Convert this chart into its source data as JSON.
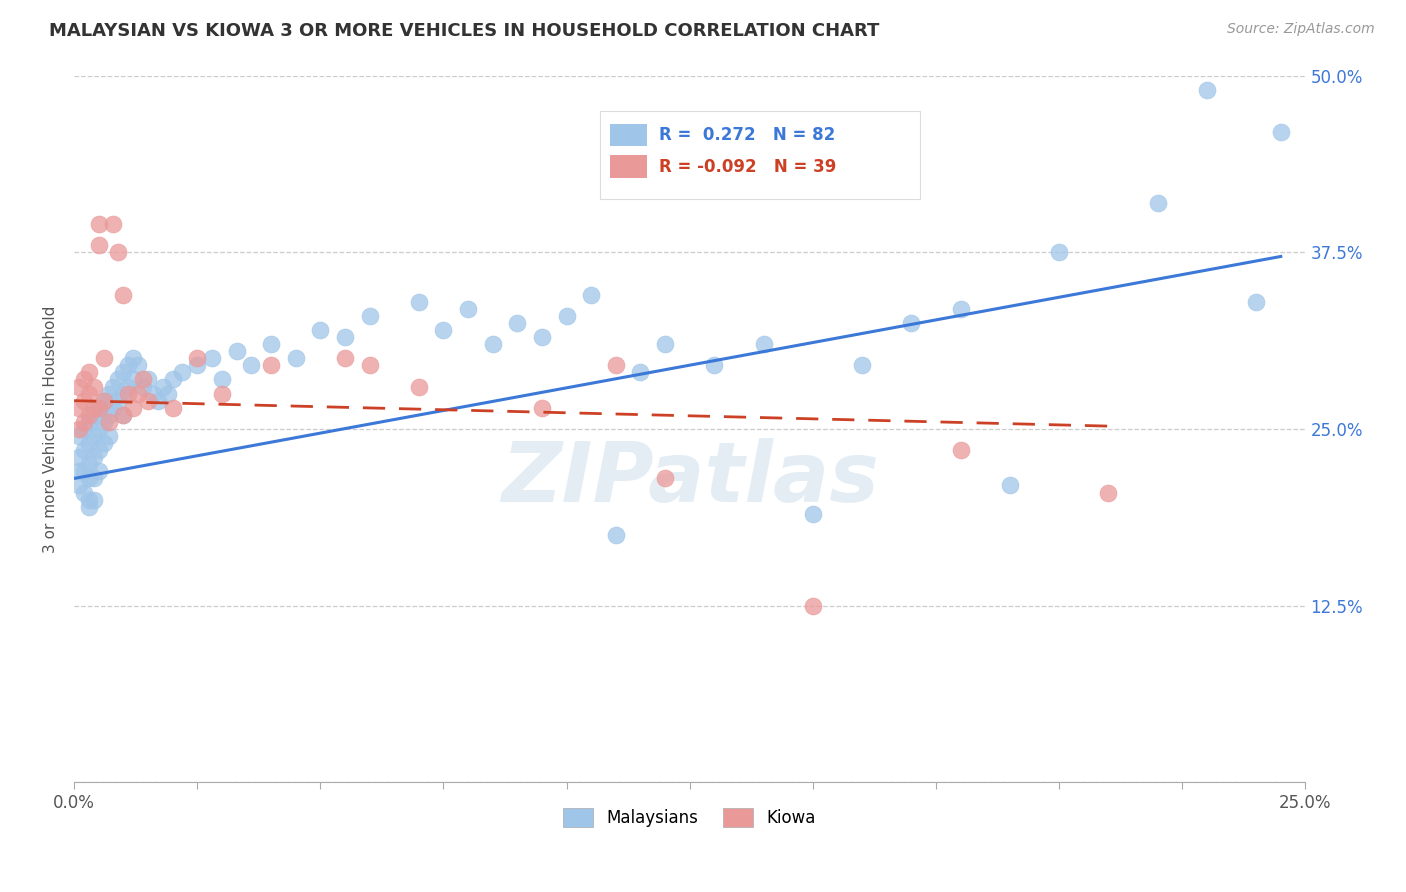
{
  "title": "MALAYSIAN VS KIOWA 3 OR MORE VEHICLES IN HOUSEHOLD CORRELATION CHART",
  "source": "Source: ZipAtlas.com",
  "ylabel": "3 or more Vehicles in Household",
  "ytick_labels": [
    "",
    "12.5%",
    "25.0%",
    "37.5%",
    "50.0%"
  ],
  "ytick_values": [
    0.0,
    0.125,
    0.25,
    0.375,
    0.5
  ],
  "xlim": [
    0.0,
    0.25
  ],
  "ylim": [
    0.0,
    0.5
  ],
  "watermark": "ZIPatlas",
  "color_malaysian": "#9fc5e8",
  "color_kiowa": "#ea9999",
  "color_line_malaysian": "#3c78d8",
  "color_line_kiowa": "#cc4125",
  "mal_line_x0": 0.0,
  "mal_line_y0": 0.215,
  "mal_line_x1": 0.245,
  "mal_line_y1": 0.372,
  "kio_line_x0": 0.0,
  "kio_line_y0": 0.27,
  "kio_line_x1": 0.21,
  "kio_line_y1": 0.252,
  "malaysian_x": [
    0.001,
    0.001,
    0.001,
    0.001,
    0.002,
    0.002,
    0.002,
    0.002,
    0.003,
    0.003,
    0.003,
    0.003,
    0.003,
    0.003,
    0.004,
    0.004,
    0.004,
    0.004,
    0.004,
    0.005,
    0.005,
    0.005,
    0.005,
    0.006,
    0.006,
    0.006,
    0.007,
    0.007,
    0.007,
    0.008,
    0.008,
    0.009,
    0.009,
    0.01,
    0.01,
    0.01,
    0.011,
    0.011,
    0.012,
    0.012,
    0.013,
    0.014,
    0.015,
    0.016,
    0.017,
    0.018,
    0.019,
    0.02,
    0.022,
    0.025,
    0.028,
    0.03,
    0.033,
    0.036,
    0.04,
    0.045,
    0.05,
    0.055,
    0.06,
    0.07,
    0.075,
    0.08,
    0.085,
    0.09,
    0.095,
    0.1,
    0.105,
    0.11,
    0.115,
    0.12,
    0.13,
    0.14,
    0.15,
    0.16,
    0.17,
    0.18,
    0.19,
    0.2,
    0.22,
    0.23,
    0.24,
    0.245
  ],
  "malaysian_y": [
    0.245,
    0.23,
    0.22,
    0.21,
    0.25,
    0.235,
    0.22,
    0.205,
    0.255,
    0.24,
    0.225,
    0.215,
    0.2,
    0.195,
    0.26,
    0.245,
    0.23,
    0.215,
    0.2,
    0.265,
    0.25,
    0.235,
    0.22,
    0.27,
    0.255,
    0.24,
    0.275,
    0.26,
    0.245,
    0.28,
    0.265,
    0.285,
    0.27,
    0.29,
    0.275,
    0.26,
    0.295,
    0.28,
    0.3,
    0.285,
    0.295,
    0.28,
    0.285,
    0.275,
    0.27,
    0.28,
    0.275,
    0.285,
    0.29,
    0.295,
    0.3,
    0.285,
    0.305,
    0.295,
    0.31,
    0.3,
    0.32,
    0.315,
    0.33,
    0.34,
    0.32,
    0.335,
    0.31,
    0.325,
    0.315,
    0.33,
    0.345,
    0.175,
    0.29,
    0.31,
    0.295,
    0.31,
    0.19,
    0.295,
    0.325,
    0.335,
    0.21,
    0.375,
    0.41,
    0.49,
    0.34,
    0.46
  ],
  "kiowa_x": [
    0.001,
    0.001,
    0.001,
    0.002,
    0.002,
    0.002,
    0.003,
    0.003,
    0.003,
    0.004,
    0.004,
    0.005,
    0.005,
    0.005,
    0.006,
    0.006,
    0.007,
    0.008,
    0.009,
    0.01,
    0.01,
    0.011,
    0.012,
    0.013,
    0.014,
    0.015,
    0.02,
    0.025,
    0.03,
    0.04,
    0.055,
    0.06,
    0.07,
    0.095,
    0.11,
    0.12,
    0.15,
    0.18,
    0.21
  ],
  "kiowa_y": [
    0.25,
    0.265,
    0.28,
    0.255,
    0.27,
    0.285,
    0.26,
    0.275,
    0.29,
    0.265,
    0.28,
    0.395,
    0.38,
    0.265,
    0.3,
    0.27,
    0.255,
    0.395,
    0.375,
    0.345,
    0.26,
    0.275,
    0.265,
    0.275,
    0.285,
    0.27,
    0.265,
    0.3,
    0.275,
    0.295,
    0.3,
    0.295,
    0.28,
    0.265,
    0.295,
    0.215,
    0.125,
    0.235,
    0.205
  ]
}
